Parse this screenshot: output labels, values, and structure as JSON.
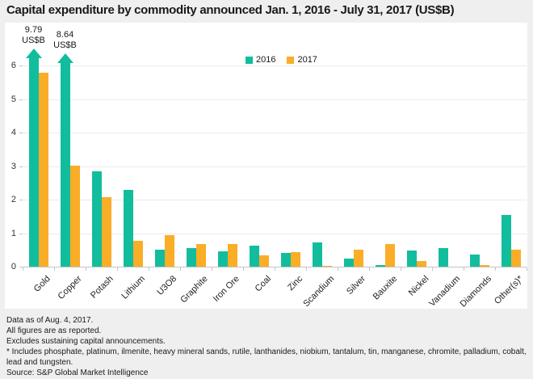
{
  "title": "Capital expenditure by commodity announced Jan. 1, 2016 - July 31, 2017 (US$B)",
  "colors": {
    "background": "#efefef",
    "panel": "#ffffff",
    "series_2016": "#12bd9d",
    "series_2017": "#faad27",
    "gridline": "#ebebeb",
    "axis": "#c4c4c4",
    "text": "#191919"
  },
  "legend": [
    {
      "label": "2016",
      "color": "#12bd9d"
    },
    {
      "label": "2017",
      "color": "#faad27"
    }
  ],
  "chart_data": {
    "type": "bar",
    "title": "Capital expenditure by commodity announced Jan. 1, 2016 - July 31, 2017 (US$B)",
    "categories": [
      "Gold",
      "Copper",
      "Potash",
      "Lithium",
      "U3O8",
      "Graphite",
      "Iron Ore",
      "Coal",
      "Zinc",
      "Scandium",
      "Silver",
      "Bauxite",
      "Nickel",
      "Vanadium",
      "Diamonds",
      "Other(s)*"
    ],
    "series": [
      {
        "name": "2016",
        "color": "#12bd9d",
        "values": [
          9.79,
          8.64,
          2.85,
          2.3,
          0.5,
          0.55,
          0.45,
          0.62,
          0.4,
          0.73,
          0.23,
          0.04,
          0.47,
          0.55,
          0.36,
          1.55
        ]
      },
      {
        "name": "2017",
        "color": "#faad27",
        "values": [
          5.78,
          3.0,
          2.08,
          0.76,
          0.93,
          0.68,
          0.68,
          0.34,
          0.43,
          0.03,
          0.51,
          0.68,
          0.16,
          0,
          0.06,
          0.5
        ]
      }
    ],
    "ylabel": "",
    "xlabel": "",
    "ylim": [
      0,
      6
    ],
    "yticks": [
      0,
      1,
      2,
      3,
      4,
      5,
      6
    ],
    "grid": true,
    "legend_position": "top-center",
    "clipped_bars": [
      {
        "category": "Gold",
        "series": "2016",
        "annotation_value": "9.79",
        "annotation_unit": "US$B"
      },
      {
        "category": "Copper",
        "series": "2016",
        "annotation_value": "8.64",
        "annotation_unit": "US$B"
      }
    ]
  },
  "footnotes": [
    "Data as of Aug. 4, 2017.",
    "All figures are as reported.",
    "Excludes sustaining capital announcements.",
    "* Includes phosphate, platinum, ilmenite, heavy mineral sands, rutile, lanthanides, niobium, tantalum, tin, manganese, chromite, palladium, cobalt, lead and tungsten.",
    "Source: S&P Global Market Intelligence"
  ]
}
